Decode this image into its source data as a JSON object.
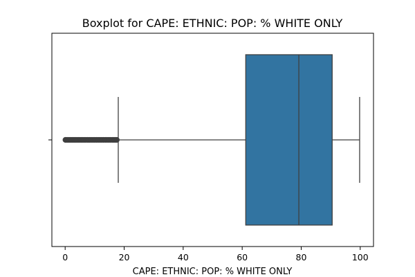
{
  "chart_data": {
    "type": "boxplot",
    "title": "Boxplot for CAPE: ETHNIC: POP: % WHITE ONLY",
    "xlabel": "CAPE: ETHNIC: POP: % WHITE ONLY",
    "ylabel": "",
    "orientation": "horizontal",
    "xlim": [
      -4.5,
      104.5
    ],
    "xticks": [
      0,
      20,
      40,
      60,
      80,
      100
    ],
    "grid": false,
    "colors": {
      "box": "#3274a1",
      "lines": "#3f3f3f"
    },
    "box": {
      "whisker_low": 18,
      "q1": 61.2,
      "median": 79.2,
      "q3": 90.5,
      "whisker_high": 99.8
    },
    "outliers": [
      0.1,
      0.4,
      0.8,
      1.2,
      1.6,
      2.0,
      2.4,
      2.8,
      3.2,
      3.6,
      4.0,
      4.5,
      5.0,
      5.5,
      6.0,
      6.5,
      7.0,
      7.6,
      8.2,
      8.8,
      9.4,
      10.0,
      10.6,
      11.2,
      11.8,
      12.4,
      13.0,
      13.6,
      14.2,
      14.8,
      15.4,
      16.0,
      16.5,
      17.0,
      17.5
    ]
  }
}
